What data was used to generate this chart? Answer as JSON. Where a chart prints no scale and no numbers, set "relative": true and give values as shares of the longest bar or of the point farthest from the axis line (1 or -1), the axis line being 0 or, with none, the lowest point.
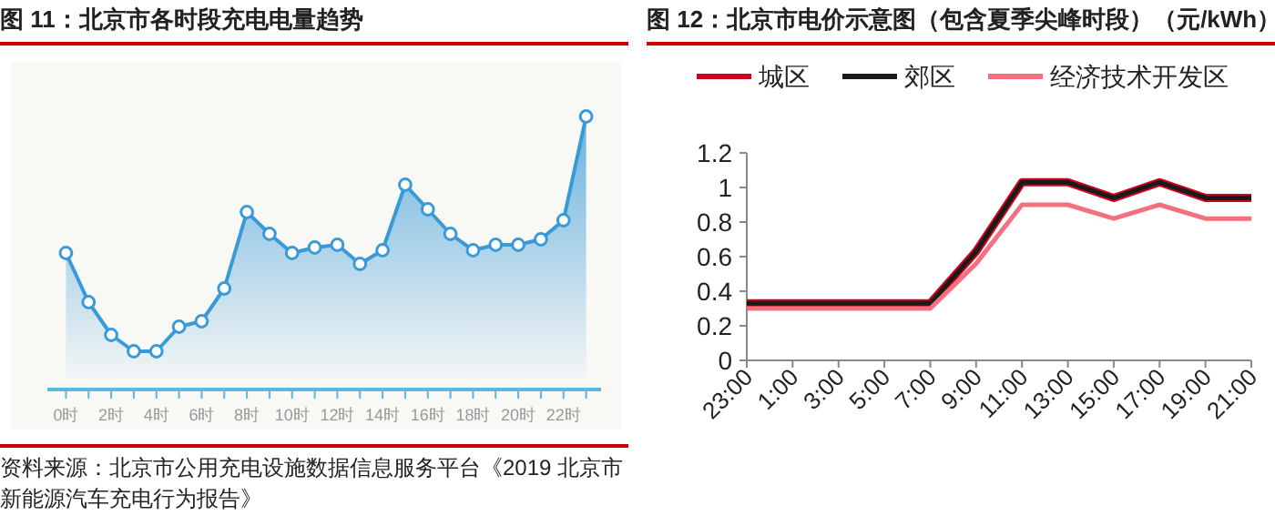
{
  "chart_data": [
    {
      "type": "area",
      "title": "图 11：北京市各时段充电电量趋势",
      "relative": true,
      "marker": "circle",
      "categories": [
        "0时",
        null,
        "2时",
        null,
        "4时",
        null,
        "6时",
        null,
        "8时",
        null,
        "10时",
        null,
        "12时",
        null,
        "14时",
        null,
        "16时",
        null,
        "18时",
        null,
        "20时",
        null,
        "22时",
        null
      ],
      "series": [
        {
          "color": "#3a9ad8",
          "values": [
            0.5,
            0.32,
            0.2,
            0.14,
            0.14,
            0.23,
            0.25,
            0.37,
            0.65,
            0.57,
            0.5,
            0.52,
            0.53,
            0.46,
            0.51,
            0.75,
            0.66,
            0.57,
            0.51,
            0.53,
            0.53,
            0.55,
            0.62,
            1.0
          ]
        }
      ],
      "annotations": [
        "资料来源：北京市公用充电设施数据信息服务平台《2019 北京市新能源汽车充电行为报告》"
      ]
    },
    {
      "type": "line",
      "title": "图 12：北京市电价示意图（包含夏季尖峰时段）（元/kWh）",
      "legend": "top",
      "categories": [
        "23:00",
        "1:00",
        "3:00",
        "5:00",
        "7:00",
        "9:00",
        "11:00",
        "13:00",
        "15:00",
        "17:00",
        "19:00",
        "21:00"
      ],
      "ylim": [
        0,
        1.2
      ],
      "yticks": [
        0,
        0.2,
        0.4,
        0.6,
        0.8,
        1,
        1.2
      ],
      "series": [
        {
          "name": "城区",
          "color": "#d0021b",
          "values": [
            0.33,
            0.33,
            0.33,
            0.33,
            0.33,
            0.63,
            1.03,
            1.03,
            0.94,
            1.03,
            0.94,
            0.94
          ]
        },
        {
          "name": "郊区",
          "color": "#1a1a1a",
          "values": [
            0.33,
            0.33,
            0.33,
            0.33,
            0.33,
            0.63,
            1.03,
            1.03,
            0.94,
            1.03,
            0.94,
            0.94
          ]
        },
        {
          "name": "经济技术开发区",
          "color": "#f4707e",
          "values": [
            0.3,
            0.3,
            0.3,
            0.3,
            0.3,
            0.56,
            0.9,
            0.9,
            0.82,
            0.9,
            0.82,
            0.82
          ]
        }
      ]
    }
  ]
}
